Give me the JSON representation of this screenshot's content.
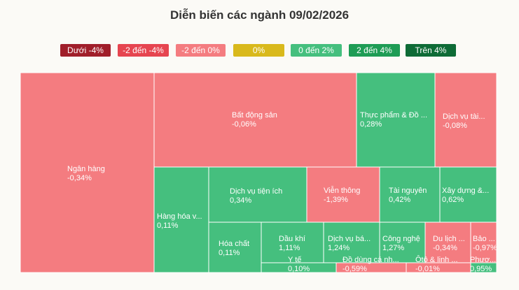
{
  "title": "Diễn biến các ngành 09/02/2026",
  "legend": [
    {
      "label": "Dưới -4%",
      "color": "#a01e2a"
    },
    {
      "label": "-2 đến -4%",
      "color": "#e64550"
    },
    {
      "label": "-2 đến 0%",
      "color": "#f47c80"
    },
    {
      "label": "0%",
      "color": "#d9b91c"
    },
    {
      "label": "0 đến 2%",
      "color": "#45bf7e"
    },
    {
      "label": "2 đến 4%",
      "color": "#1e9c55"
    },
    {
      "label": "Trên 4%",
      "color": "#0e6b36"
    }
  ],
  "chart_data": {
    "type": "treemap",
    "title": "Diễn biến các ngành 09/02/2026",
    "items": [
      {
        "name": "Ngân hàng",
        "value": "-0,34%",
        "pct": -0.34
      },
      {
        "name": "Bất động sản",
        "value": "-0,06%",
        "pct": -0.06
      },
      {
        "name": "Thực phẩm & Đồ ...",
        "value": "0,28%",
        "pct": 0.28
      },
      {
        "name": "Dịch vụ tài...",
        "value": "-0,08%",
        "pct": -0.08
      },
      {
        "name": "Hàng hóa v...",
        "value": "0,11%",
        "pct": 0.11
      },
      {
        "name": "Dịch vụ tiện ích",
        "value": "0,34%",
        "pct": 0.34
      },
      {
        "name": "Viễn thông",
        "value": "-1,39%",
        "pct": -1.39
      },
      {
        "name": "Tài nguyên",
        "value": "0,42%",
        "pct": 0.42
      },
      {
        "name": "Xây dựng &...",
        "value": "0,62%",
        "pct": 0.62
      },
      {
        "name": "Hóa chất",
        "value": "0,11%",
        "pct": 0.11
      },
      {
        "name": "Dầu khí",
        "value": "1,11%",
        "pct": 1.11
      },
      {
        "name": "Dịch vụ bá...",
        "value": "1,24%",
        "pct": 1.24
      },
      {
        "name": "Công nghệ",
        "value": "1,27%",
        "pct": 1.27
      },
      {
        "name": "Du lịch ...",
        "value": "-0,34%",
        "pct": -0.34
      },
      {
        "name": "Bảo ...",
        "value": "-0,97%",
        "pct": -0.97
      },
      {
        "name": "Y tế",
        "value": "0,10%",
        "pct": 0.1
      },
      {
        "name": "Đồ dùng cá nh...",
        "value": "-0,59%",
        "pct": -0.59
      },
      {
        "name": "Ôtô & linh ...",
        "value": "-0,01%",
        "pct": -0.01
      },
      {
        "name": "Phươ...",
        "value": "0,95%",
        "pct": 0.95
      }
    ]
  }
}
